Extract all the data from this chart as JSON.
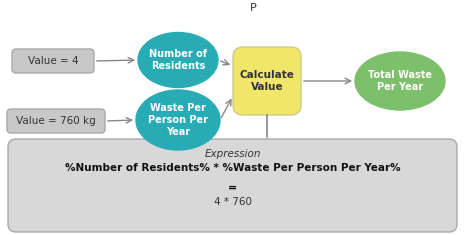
{
  "bg_color": "#ffffff",
  "cyan_color": "#29ABB5",
  "yellow_color": "#F0E76A",
  "green_color": "#7DC06B",
  "gray_box_color": "#C8C8C8",
  "gray_bg_color": "#D8D8D8",
  "text_color_white": "#ffffff",
  "text_color_dark": "#333333",
  "text_color_black": "#111111",
  "arrow_color": "#888888",
  "p_label": "P",
  "node1_label": "Number of\nResidents",
  "node2_label": "Waste Per\nPerson Per\nYear",
  "calc_label": "Calculate\nValue",
  "output_label": "Total Waste\nPer Year",
  "val1_label": "Value = 4",
  "val2_label": "Value = 760 kg",
  "expr_title": "Expression",
  "expr_line1": "%Number of Residents% * %Waste Per Person Per Year%",
  "expr_line2": "=",
  "expr_line3": "4 * 760",
  "fig_width": 4.65,
  "fig_height": 2.35,
  "dpi": 100
}
